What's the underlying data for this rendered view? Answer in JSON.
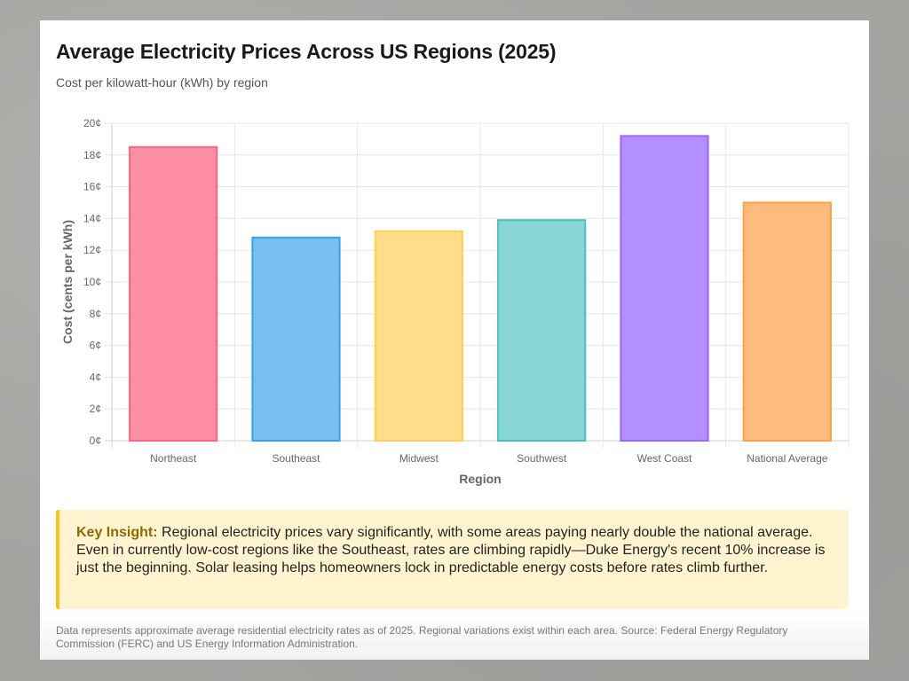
{
  "header": {
    "title": "Average Electricity Prices Across US Regions (2025)",
    "subtitle": "Cost per kilowatt-hour (kWh) by region"
  },
  "chart_data": {
    "type": "bar",
    "title": "Average Electricity Prices Across US Regions (2025)",
    "subtitle": "Cost per kilowatt-hour (kWh) by region",
    "xlabel": "Region",
    "ylabel": "Cost (cents per kWh)",
    "categories": [
      "Northeast",
      "Southeast",
      "Midwest",
      "Southwest",
      "West Coast",
      "National Average"
    ],
    "values": [
      18.5,
      12.8,
      13.2,
      13.9,
      19.2,
      15.0
    ],
    "ylim": [
      0,
      20
    ],
    "yticks": [
      0,
      2,
      4,
      6,
      8,
      10,
      12,
      14,
      16,
      18,
      20
    ],
    "ytick_suffix": "¢",
    "grid": true,
    "legend": "none",
    "colors": {
      "fill": [
        "#ff8fa5",
        "#78bef0",
        "#ffde8a",
        "#88d5d6",
        "#b48fff",
        "#ffbb7d"
      ],
      "stroke": [
        "#ff6384",
        "#36a2eb",
        "#ffce56",
        "#4bc0c0",
        "#9966ff",
        "#ff9f40"
      ]
    }
  },
  "insight": {
    "label": "Key Insight:",
    "text": " Regional electricity prices vary significantly, with some areas paying nearly double the national average. Even in currently low-cost regions like the Southeast, rates are climbing rapidly—Duke Energy's recent 10% increase is just the beginning. Solar leasing helps homeowners lock in predictable energy costs before rates climb further."
  },
  "footnote": "Data represents approximate average residential electricity rates as of 2025. Regional variations exist within each area. Source: Federal Energy Regulatory Commission (FERC) and US Energy Information Administration."
}
